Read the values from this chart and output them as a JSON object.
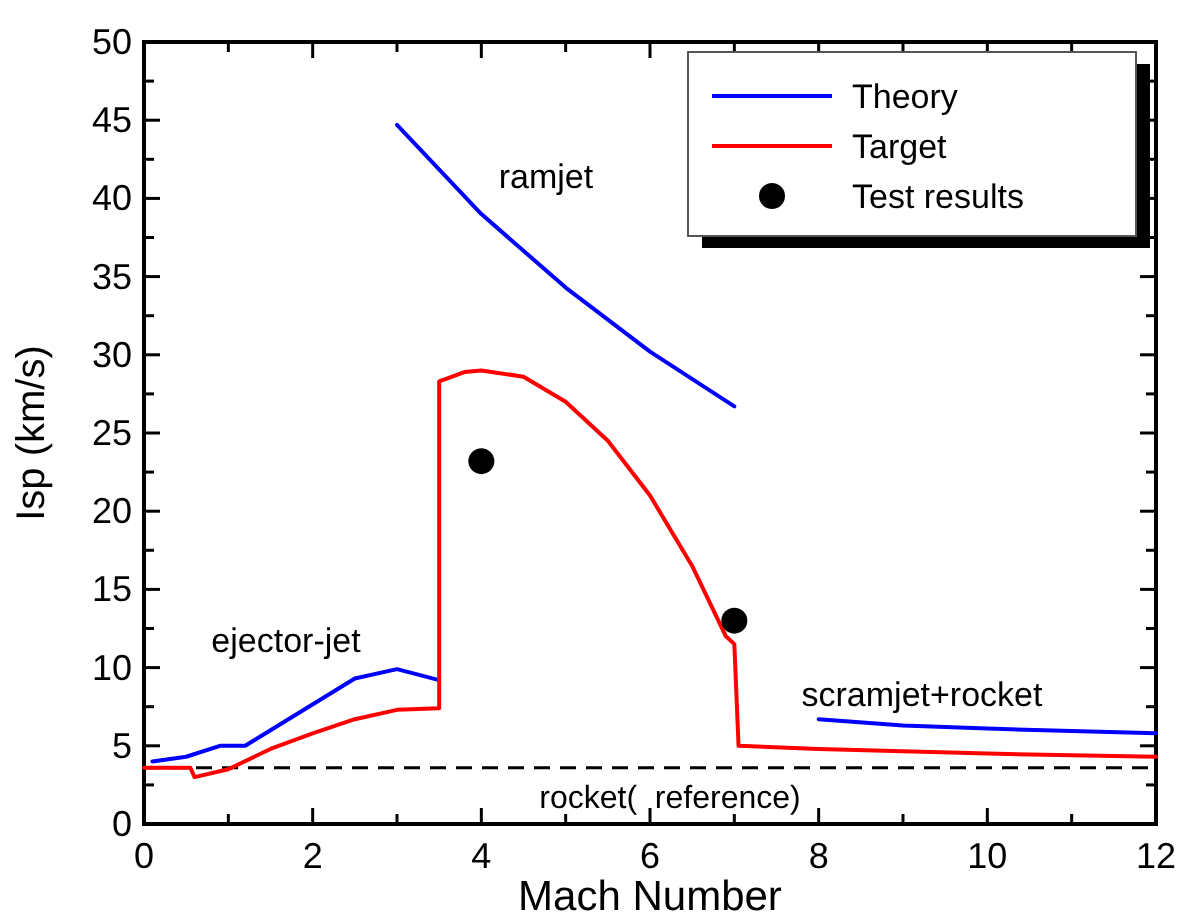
{
  "chart_data": {
    "type": "line",
    "xlabel": "Mach Number",
    "ylabel": "Isp (km/s)",
    "xlim": [
      0,
      12
    ],
    "ylim": [
      0,
      50
    ],
    "xticks": [
      0,
      {
        "value": 1,
        "label": null
      },
      2,
      {
        "value": 3,
        "label": null
      },
      4,
      {
        "value": 5,
        "label": null
      },
      6,
      {
        "value": 7,
        "label": null
      },
      8,
      {
        "value": 9,
        "label": null
      },
      10,
      {
        "value": 11,
        "label": null
      },
      12
    ],
    "yticks": [
      0,
      {
        "value": 2.5,
        "label": null
      },
      5,
      {
        "value": 7.5,
        "label": null
      },
      10,
      {
        "value": 12.5,
        "label": null
      },
      15,
      {
        "value": 17.5,
        "label": null
      },
      20,
      {
        "value": 22.5,
        "label": null
      },
      25,
      {
        "value": 27.5,
        "label": null
      },
      30,
      {
        "value": 32.5,
        "label": null
      },
      35,
      {
        "value": 37.5,
        "label": null
      },
      40,
      {
        "value": 42.5,
        "label": null
      },
      45,
      {
        "value": 47.5,
        "label": null
      },
      50
    ],
    "grid": false,
    "legend": "top right",
    "line_style": "solid",
    "series": [
      {
        "name": "Theory",
        "color": "#0000ff",
        "x": [
          0.1,
          0.5,
          0.9,
          1.2,
          2.5,
          3.0,
          3.5,
          null,
          3.0,
          4,
          5,
          6,
          7,
          null,
          8,
          9,
          10,
          12
        ],
        "values": [
          4.0,
          4.3,
          5.0,
          5.0,
          9.3,
          9.9,
          9.2,
          null,
          44.7,
          39,
          34.3,
          30.2,
          26.7,
          null,
          6.7,
          6.3,
          6.1,
          5.8
        ]
      },
      {
        "name": "Target",
        "color": "#ff0000",
        "x": [
          0,
          0.55,
          0.6,
          1,
          1.5,
          2,
          2.5,
          3,
          3.5,
          3.5,
          3.8,
          4,
          4.5,
          5,
          5.5,
          6,
          6.5,
          6.9,
          7,
          7.05,
          8,
          10,
          12
        ],
        "values": [
          3.6,
          3.6,
          3.0,
          3.5,
          4.8,
          5.8,
          6.7,
          7.3,
          7.4,
          28.3,
          28.9,
          29.0,
          28.6,
          27,
          24.5,
          21,
          16.5,
          12,
          11.5,
          5,
          4.8,
          4.5,
          4.3
        ]
      },
      {
        "name": "Test results",
        "type": "scatter",
        "color": "#000000",
        "marker": "circle",
        "x": [
          4,
          7
        ],
        "values": [
          23.2,
          13
        ]
      }
    ],
    "ref_lines": [
      {
        "axis": "y",
        "value": 3.6,
        "label": "rocket(  reference)",
        "color": "#000000",
        "line_style": "dashed"
      }
    ],
    "annotations": [
      "ramjet",
      "ejector-jet",
      "scramjet+rocket"
    ]
  }
}
